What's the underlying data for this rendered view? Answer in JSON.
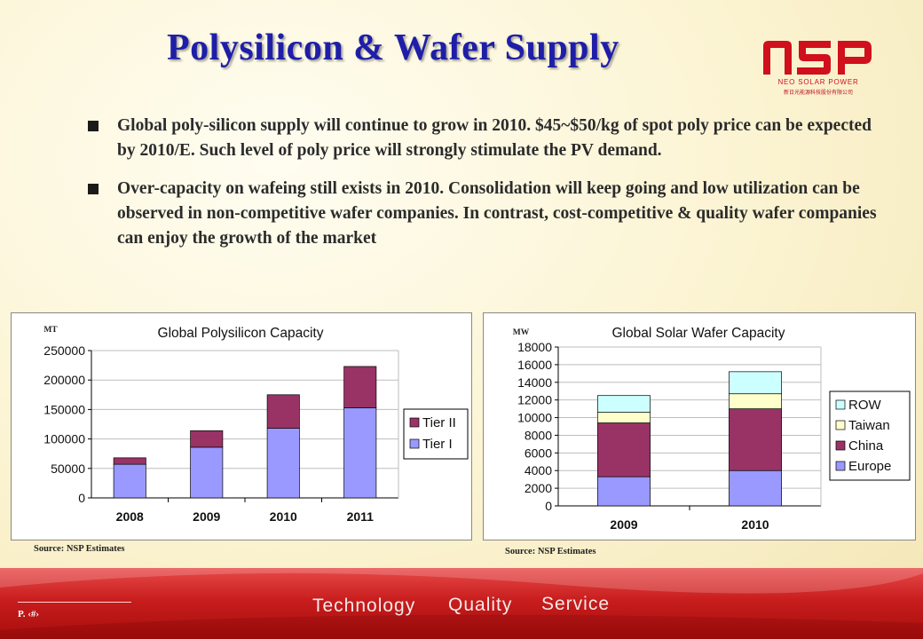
{
  "slide": {
    "title": "Polysilicon & Wafer Supply",
    "logo": {
      "text": "NSP",
      "brand": "NEO SOLAR POWER",
      "subtitle": "新日光能源科技股份有限公司"
    },
    "bullets": [
      "Global poly-silicon supply will continue to grow in 2010. $45~$50/kg of spot poly price can be expected by 2010/E. Such level of poly price will strongly stimulate the PV demand.",
      "Over-capacity on wafeing still exists in 2010. Consolidation will keep going and low utilization can be observed in non-competitive wafer companies. In contrast, cost-competitive & quality wafer companies can enjoy the growth of the market"
    ],
    "footer": {
      "page": "P. ‹#›",
      "tags": [
        "Technology",
        "Quality",
        "Service"
      ]
    },
    "colors": {
      "title": "#1e1ea8",
      "footer": "#c81d1d"
    }
  },
  "chart_data": [
    {
      "type": "bar",
      "stacked": true,
      "title": "Global Polysilicon Capacity",
      "unit": "MT",
      "categories": [
        "2008",
        "2009",
        "2010",
        "2011"
      ],
      "ylim": [
        0,
        250000
      ],
      "yticks": [
        "0",
        "50000",
        "100000",
        "150000",
        "200000",
        "250000"
      ],
      "series": [
        {
          "name": "Tier I",
          "color": "#9999ff",
          "values": [
            57000,
            86000,
            118000,
            153000
          ]
        },
        {
          "name": "Tier II",
          "color": "#993366",
          "values": [
            11000,
            28000,
            57000,
            70000
          ]
        }
      ],
      "legend": [
        "Tier II",
        "Tier I"
      ],
      "legend_position": "right",
      "grid": true,
      "source": "Source: NSP Estimates"
    },
    {
      "type": "bar",
      "stacked": true,
      "title": "Global Solar Wafer Capacity",
      "unit": "MW",
      "categories": [
        "2009",
        "2010"
      ],
      "ylim": [
        0,
        18000
      ],
      "yticks": [
        "0",
        "2000",
        "4000",
        "6000",
        "8000",
        "10000",
        "12000",
        "14000",
        "16000",
        "18000"
      ],
      "series": [
        {
          "name": "Europe",
          "color": "#9999ff",
          "values": [
            3300,
            4000
          ]
        },
        {
          "name": "China",
          "color": "#993366",
          "values": [
            6100,
            7000
          ]
        },
        {
          "name": "Taiwan",
          "color": "#ffffcc",
          "values": [
            1200,
            1700
          ]
        },
        {
          "name": "ROW",
          "color": "#ccffff",
          "values": [
            1900,
            2500
          ]
        }
      ],
      "legend": [
        "ROW",
        "Taiwan",
        "China",
        "Europe"
      ],
      "legend_position": "right",
      "grid": true,
      "source": "Source: NSP Estimates"
    }
  ]
}
